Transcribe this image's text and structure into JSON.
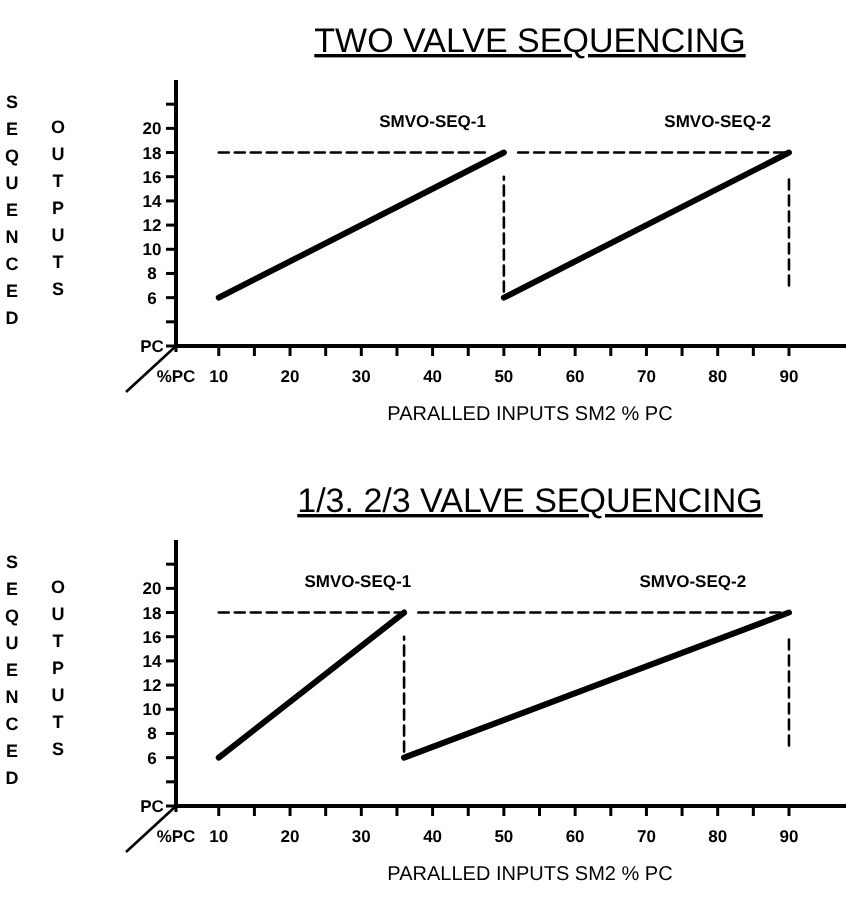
{
  "chart_data": [
    {
      "type": "line",
      "title": "TWO VALVE SEQUENCING",
      "xlabel": "PARALLED INPUTS SM2 % PC",
      "ylabel": "SEQUENCED OUTPUTS",
      "xlim": [
        4,
        98
      ],
      "ylim": [
        2,
        24
      ],
      "xticks": [
        {
          "value": 4,
          "label": "%PC"
        },
        10,
        {
          "value": 15,
          "label": null
        },
        20,
        {
          "value": 25,
          "label": null
        },
        30,
        {
          "value": 35,
          "label": null
        },
        40,
        {
          "value": 45,
          "label": null
        },
        50,
        {
          "value": 55,
          "label": null
        },
        60,
        {
          "value": 65,
          "label": null
        },
        70,
        {
          "value": 75,
          "label": null
        },
        80,
        {
          "value": 85,
          "label": null
        },
        90
      ],
      "yticks": [
        {
          "value": 2,
          "label": "PC"
        },
        {
          "value": 4,
          "label": null
        },
        6,
        8,
        10,
        12,
        14,
        16,
        18,
        20,
        {
          "value": 22,
          "label": null
        }
      ],
      "grid": false,
      "legend": false,
      "series": [
        {
          "name": "SMVO-SEQ-1",
          "color": "#000000",
          "x": [
            10,
            50
          ],
          "values": [
            6,
            18
          ]
        },
        {
          "name": "SMVO-SEQ-2",
          "color": "#000000",
          "x": [
            50,
            90
          ],
          "values": [
            6,
            18
          ]
        },
        {
          "color": "#000000",
          "line_style": "dashed",
          "x": [
            10,
            48
          ],
          "values": [
            18,
            18
          ]
        },
        {
          "color": "#000000",
          "line_style": "dashed",
          "x": [
            52,
            90
          ],
          "values": [
            18,
            18
          ]
        },
        {
          "color": "#000000",
          "line_style": "dashed",
          "x": [
            50,
            50
          ],
          "values": [
            6.5,
            16
          ]
        },
        {
          "color": "#000000",
          "line_style": "dashed",
          "x": [
            90,
            90
          ],
          "values": [
            7,
            16
          ]
        }
      ]
    },
    {
      "type": "line",
      "title": "1/3. 2/3 VALVE SEQUENCING",
      "xlabel": "PARALLED INPUTS SM2 % PC",
      "ylabel": "SEQUENCED OUTPUTS",
      "xlim": [
        4,
        98
      ],
      "ylim": [
        2,
        24
      ],
      "xticks": [
        {
          "value": 4,
          "label": "%PC"
        },
        10,
        {
          "value": 15,
          "label": null
        },
        20,
        {
          "value": 25,
          "label": null
        },
        30,
        {
          "value": 35,
          "label": null
        },
        40,
        {
          "value": 45,
          "label": null
        },
        50,
        {
          "value": 55,
          "label": null
        },
        60,
        {
          "value": 65,
          "label": null
        },
        70,
        {
          "value": 75,
          "label": null
        },
        80,
        {
          "value": 85,
          "label": null
        },
        90
      ],
      "yticks": [
        {
          "value": 2,
          "label": "PC"
        },
        {
          "value": 4,
          "label": null
        },
        6,
        8,
        10,
        12,
        14,
        16,
        18,
        20,
        {
          "value": 22,
          "label": null
        }
      ],
      "grid": false,
      "legend": false,
      "series": [
        {
          "name": "SMVO-SEQ-1",
          "color": "#000000",
          "x": [
            10,
            36
          ],
          "values": [
            6,
            18
          ]
        },
        {
          "name": "SMVO-SEQ-2",
          "color": "#000000",
          "x": [
            36,
            90
          ],
          "values": [
            6,
            18
          ]
        },
        {
          "color": "#000000",
          "line_style": "dashed",
          "x": [
            10,
            36
          ],
          "values": [
            18,
            18
          ]
        },
        {
          "color": "#000000",
          "line_style": "dashed",
          "x": [
            38,
            90
          ],
          "values": [
            18,
            18
          ]
        },
        {
          "color": "#000000",
          "line_style": "dashed",
          "x": [
            36,
            36
          ],
          "values": [
            6.5,
            16
          ]
        },
        {
          "color": "#000000",
          "line_style": "dashed",
          "x": [
            90,
            90
          ],
          "values": [
            7,
            16
          ]
        }
      ]
    }
  ]
}
